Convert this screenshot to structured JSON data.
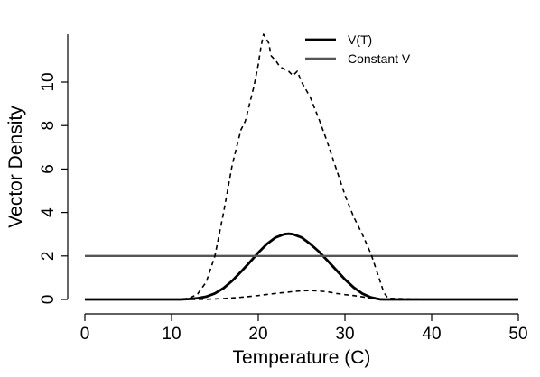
{
  "chart_data": {
    "type": "line",
    "title": "",
    "xlabel": "Temperature (C)",
    "ylabel": "Vector Density",
    "xlim": [
      0,
      50
    ],
    "ylim": [
      0,
      12.2
    ],
    "xticks": [
      0,
      10,
      20,
      30,
      40,
      50
    ],
    "yticks": [
      0,
      2,
      4,
      6,
      8,
      10
    ],
    "grid": false,
    "legend": {
      "position": "top-right",
      "entries": [
        {
          "label": "V(T)",
          "color": "#000000",
          "style": "solid"
        },
        {
          "label": "Constant V",
          "color": "#555555",
          "style": "solid"
        }
      ]
    },
    "series": [
      {
        "name": "V(T)",
        "color": "#000000",
        "style": "solid",
        "x": [
          0,
          10,
          11,
          12,
          13,
          14,
          15,
          16,
          17,
          18,
          19,
          20,
          21,
          22,
          23,
          23.5,
          24,
          25,
          26,
          27,
          28,
          29,
          30,
          31,
          32,
          33,
          34,
          34.5,
          35,
          40,
          50
        ],
        "y": [
          0,
          0,
          0,
          0.02,
          0.06,
          0.13,
          0.28,
          0.52,
          0.86,
          1.27,
          1.7,
          2.15,
          2.55,
          2.85,
          3.0,
          3.02,
          3.0,
          2.85,
          2.55,
          2.2,
          1.78,
          1.35,
          0.92,
          0.55,
          0.27,
          0.09,
          0.01,
          0,
          0,
          0,
          0
        ]
      },
      {
        "name": "Constant V",
        "color": "#555555",
        "style": "solid",
        "x": [
          0,
          50
        ],
        "y": [
          2,
          2
        ]
      },
      {
        "color": "#000000",
        "style": "dashed",
        "x": [
          0,
          11,
          12,
          13,
          14,
          15,
          16,
          17,
          18,
          18.5,
          19,
          19.5,
          20,
          20.3,
          20.6,
          20.9,
          21.2,
          21.5,
          22,
          22.5,
          23,
          23.5,
          24,
          24.5,
          25,
          26,
          27,
          28,
          29,
          30,
          31,
          32,
          33,
          34,
          34.5,
          35,
          40,
          50
        ],
        "y": [
          0,
          0,
          0.05,
          0.25,
          0.8,
          2.0,
          4.0,
          6.2,
          7.8,
          8.2,
          9.0,
          9.8,
          10.8,
          11.6,
          12.2,
          12.0,
          11.8,
          11.2,
          11.0,
          10.7,
          10.6,
          10.5,
          10.3,
          10.5,
          10.0,
          9.3,
          8.3,
          7.2,
          6.0,
          4.8,
          3.8,
          3.0,
          2.1,
          0.9,
          0.3,
          0.05,
          0,
          0
        ]
      },
      {
        "color": "#000000",
        "style": "dashed",
        "x": [
          0,
          10,
          12,
          14,
          16,
          18,
          20,
          22,
          24,
          25,
          26,
          27,
          28,
          29,
          30,
          31,
          32,
          33,
          34,
          35,
          40,
          50
        ],
        "y": [
          0,
          0,
          0,
          0.01,
          0.04,
          0.1,
          0.18,
          0.28,
          0.36,
          0.4,
          0.41,
          0.39,
          0.35,
          0.28,
          0.22,
          0.18,
          0.12,
          0.05,
          0.01,
          0,
          0,
          0
        ]
      }
    ]
  }
}
